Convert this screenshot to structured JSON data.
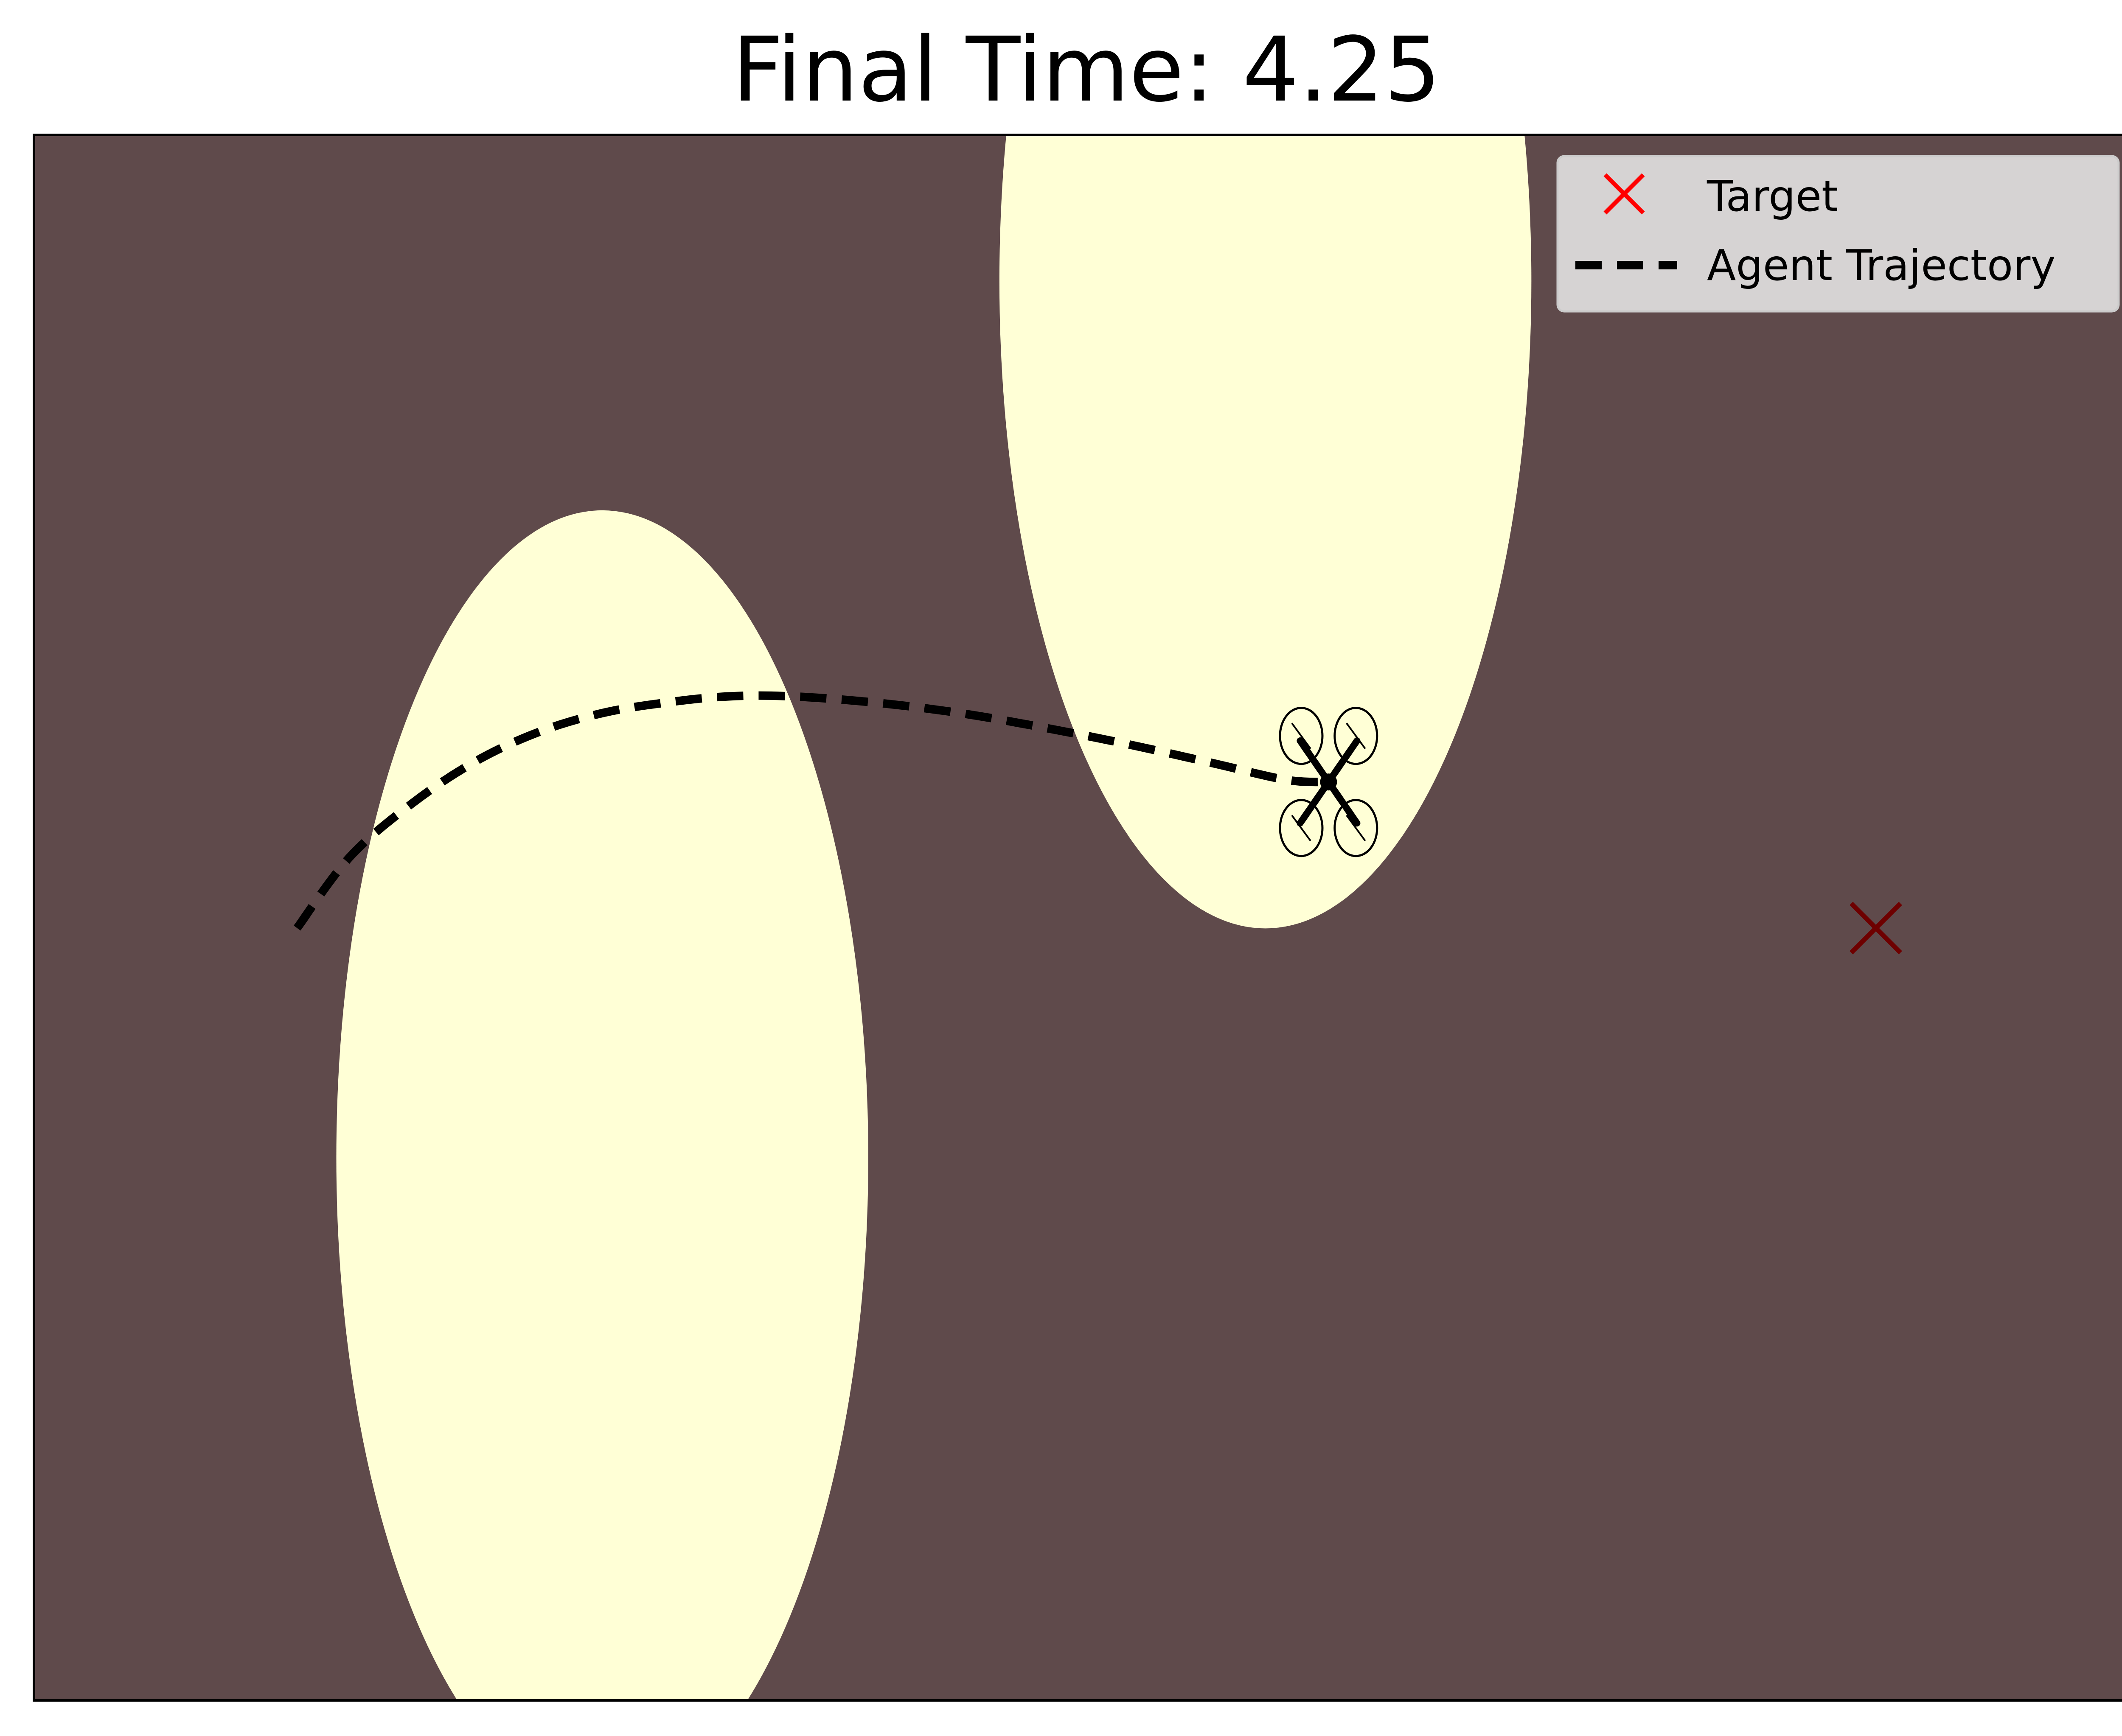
{
  "chart_data": {
    "type": "heatmap",
    "title": "Final Time: 4.25",
    "xlabel": "",
    "ylabel": "",
    "axis_ticks": "hidden",
    "xlim": [
      0,
      10
    ],
    "ylim": [
      0,
      7.5
    ],
    "grid": false,
    "legend": {
      "placement": "top-right",
      "entries": [
        {
          "label": "Target",
          "marker": "x",
          "color": "#ff0000"
        },
        {
          "label": "Agent Trajectory",
          "line": "dashed",
          "color": "#000000"
        }
      ]
    },
    "colors": {
      "background": "#5f4a4b",
      "contour_levels": [
        "#5f4a4b",
        "#7a4a4b",
        "#944b4b",
        "#b04c4c",
        "#cc4d4d",
        "#e64c4c",
        "#fe4f4f",
        "#ff7a4f",
        "#ffa24f",
        "#ffcc4f",
        "#ffee4f",
        "#ffff6e",
        "#ffffb0",
        "#ffffd6"
      ]
    },
    "obstacles": [
      {
        "center": [
          2.7,
          2.6
        ],
        "sigma": [
          0.55,
          1.35
        ]
      },
      {
        "center": [
          5.85,
          6.8
        ],
        "sigma": [
          0.55,
          1.35
        ]
      }
    ],
    "target": {
      "x": 8.75,
      "y": 3.7
    },
    "agent": {
      "x": 6.15,
      "y": 4.4
    },
    "trajectory": {
      "x": [
        1.25,
        1.5,
        1.8,
        2.1,
        2.4,
        2.7,
        3.0,
        3.3,
        3.6,
        4.0,
        4.4,
        4.8,
        5.2,
        5.6,
        5.95,
        6.15
      ],
      "y": [
        3.7,
        4.04,
        4.3,
        4.5,
        4.64,
        4.73,
        4.78,
        4.81,
        4.81,
        4.78,
        4.73,
        4.66,
        4.58,
        4.49,
        4.41,
        4.4
      ]
    }
  }
}
